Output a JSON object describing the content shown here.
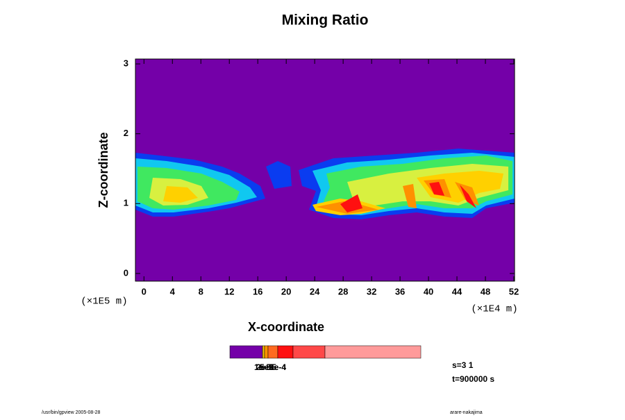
{
  "chart_data": {
    "type": "contour",
    "title": "Mixing Ratio",
    "x_label": "X-coordinate",
    "y_label": "Z-coordinate",
    "x_unit": "(×1E4 m)",
    "y_unit": "(×1E5 m)",
    "xlim": [
      -1.2,
      52.1
    ],
    "ylim": [
      -0.11,
      3.07
    ],
    "xticks": [
      0,
      4,
      8,
      12,
      16,
      20,
      24,
      28,
      32,
      36,
      40,
      44,
      48,
      52
    ],
    "yticks": [
      0,
      1,
      2,
      3
    ],
    "colorbar": {
      "colors": [
        "#7400a8",
        "#f0c000",
        "#ff9000",
        "#ff6a20",
        "#ff1010",
        "#ff4848",
        "#ff9a9a"
      ],
      "labels": [
        "1e-5",
        "2e-5",
        "5e-5",
        "1e-4",
        "5e-4"
      ]
    },
    "annotations": [
      "s=3 1",
      "t=900000 s"
    ],
    "footer_left": "/usr/bin/gpview 2005-08-28",
    "footer_right": "arare-nakajima"
  }
}
